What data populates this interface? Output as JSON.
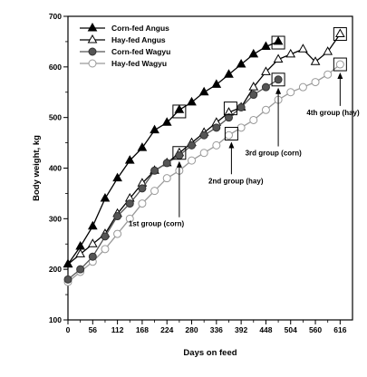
{
  "chart_data": {
    "type": "line",
    "xlabel": "Days on feed",
    "ylabel": "Body weight, kg",
    "xlim": [
      0,
      644
    ],
    "ylim": [
      100,
      700
    ],
    "xticks": [
      0,
      56,
      112,
      168,
      224,
      280,
      336,
      392,
      448,
      504,
      560,
      616
    ],
    "yticks": [
      100,
      200,
      300,
      400,
      500,
      600,
      700
    ],
    "legend_position": "top-left",
    "series": [
      {
        "name": "Corn-fed Angus",
        "marker": "filled-triangle",
        "color": "#000000",
        "x": [
          0,
          28,
          56,
          84,
          112,
          140,
          168,
          196,
          224,
          252,
          280,
          308,
          336,
          364,
          392,
          420,
          448,
          476
        ],
        "y": [
          210,
          245,
          285,
          340,
          380,
          415,
          440,
          475,
          490,
          515,
          530,
          550,
          565,
          585,
          605,
          625,
          640,
          650
        ]
      },
      {
        "name": "Hay-fed Angus",
        "marker": "open-triangle",
        "color": "#000000",
        "x": [
          0,
          28,
          56,
          84,
          112,
          140,
          168,
          196,
          224,
          252,
          280,
          308,
          336,
          364,
          392,
          420,
          448,
          476,
          504,
          532,
          560,
          588,
          616
        ],
        "y": [
          210,
          230,
          250,
          270,
          310,
          340,
          370,
          395,
          410,
          430,
          450,
          470,
          490,
          510,
          520,
          560,
          590,
          615,
          625,
          635,
          610,
          630,
          665
        ]
      },
      {
        "name": "Corn-fed Wagyu",
        "marker": "filled-circle",
        "color": "#555555",
        "x": [
          0,
          28,
          56,
          84,
          112,
          140,
          168,
          196,
          224,
          252,
          280,
          308,
          336,
          364,
          392,
          420,
          448,
          476
        ],
        "y": [
          180,
          200,
          225,
          265,
          305,
          330,
          360,
          395,
          410,
          425,
          445,
          465,
          480,
          500,
          520,
          545,
          560,
          575
        ]
      },
      {
        "name": "Hay-fed Wagyu",
        "marker": "open-circle",
        "color": "#999999",
        "x": [
          0,
          28,
          56,
          84,
          112,
          140,
          168,
          196,
          224,
          252,
          280,
          308,
          336,
          364,
          392,
          420,
          448,
          476,
          504,
          532,
          560,
          588,
          616
        ],
        "y": [
          175,
          195,
          215,
          240,
          270,
          300,
          330,
          355,
          380,
          395,
          415,
          430,
          445,
          465,
          480,
          495,
          515,
          535,
          550,
          560,
          570,
          585,
          605
        ]
      }
    ],
    "annotations": [
      {
        "text": "1st group (corn)",
        "x": 252,
        "y": 430,
        "label_x": 200,
        "label_y": 285
      },
      {
        "text": "2nd group (hay)",
        "x": 370,
        "y": 468,
        "label_x": 380,
        "label_y": 370
      },
      {
        "text": "3rd group (corn)",
        "x": 476,
        "y": 575,
        "label_x": 465,
        "label_y": 425
      },
      {
        "text": "4th group (hay)",
        "x": 616,
        "y": 605,
        "label_x": 600,
        "label_y": 505
      }
    ],
    "boxed_points": [
      {
        "x": 252,
        "y": 512
      },
      {
        "x": 252,
        "y": 430
      },
      {
        "x": 368,
        "y": 518
      },
      {
        "x": 370,
        "y": 468
      },
      {
        "x": 476,
        "y": 648
      },
      {
        "x": 476,
        "y": 575
      },
      {
        "x": 616,
        "y": 665
      },
      {
        "x": 616,
        "y": 605
      }
    ]
  }
}
